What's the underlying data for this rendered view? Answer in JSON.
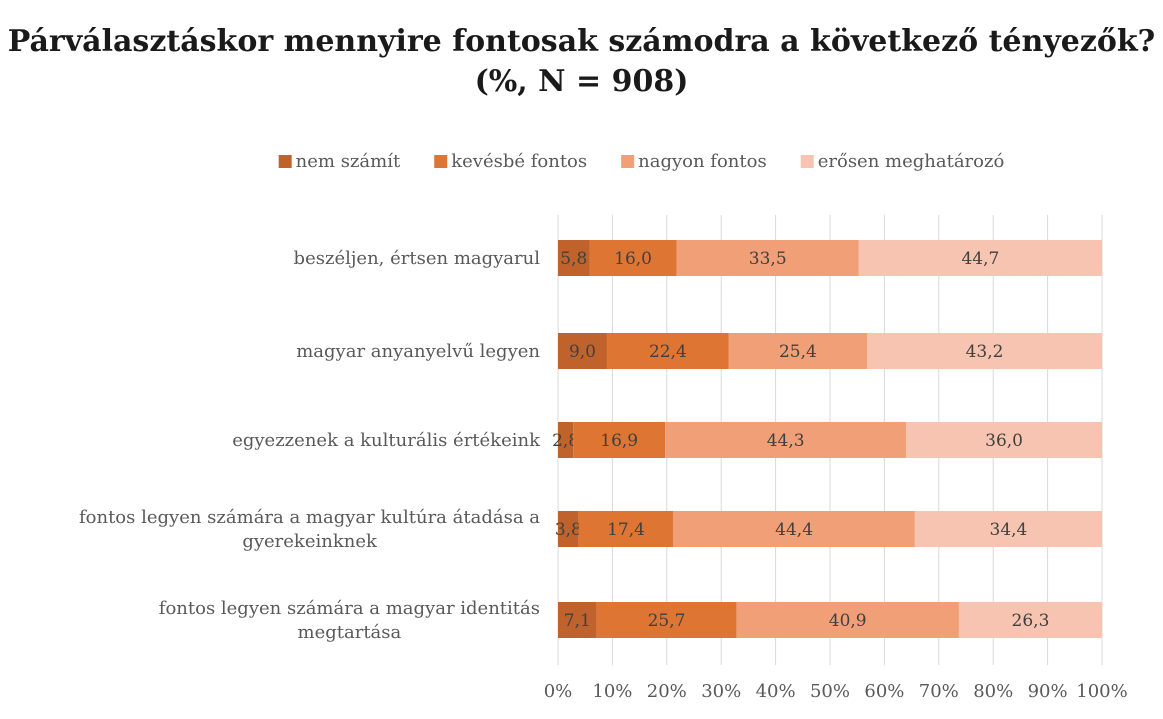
{
  "title_line1": "Párválasztáskor mennyire fontosak számodra a következő tényezők?",
  "title_line2": "(%, N = 908)",
  "chart_data": {
    "type": "bar",
    "orientation": "horizontal",
    "stacked": true,
    "percent_stacked": true,
    "categories": [
      [
        "beszéljen, értsen magyarul"
      ],
      [
        "magyar anyanyelvű legyen"
      ],
      [
        "egyezzenek a kulturális értékeink"
      ],
      [
        "fontos legyen számára a magyar kultúra átadása a",
        "gyerekeinknek"
      ],
      [
        "fontos legyen számára a magyar identitás",
        "megtartása"
      ]
    ],
    "series": [
      {
        "name": "nem számít",
        "color": "#c0622b",
        "values": [
          5.8,
          9.0,
          2.8,
          3.8,
          7.1
        ],
        "labels": [
          "5,8",
          "9,0",
          "2,8",
          "3,8",
          "7,1"
        ]
      },
      {
        "name": "kevésbé fontos",
        "color": "#de7532",
        "values": [
          16.0,
          22.4,
          16.9,
          17.4,
          25.7
        ],
        "labels": [
          "16,0",
          "22,4",
          "16,9",
          "17,4",
          "25,7"
        ]
      },
      {
        "name": "nagyon fontos",
        "color": "#f09f76",
        "values": [
          33.5,
          25.4,
          44.3,
          44.4,
          40.9
        ],
        "labels": [
          "33,5",
          "25,4",
          "44,3",
          "44,4",
          "40,9"
        ]
      },
      {
        "name": "erősen meghatározó",
        "color": "#f6c4b0",
        "values": [
          44.7,
          43.2,
          36.0,
          34.4,
          26.3
        ],
        "labels": [
          "44,7",
          "43,2",
          "36,0",
          "34,4",
          "26,3"
        ]
      }
    ],
    "xlim": [
      0,
      100
    ],
    "x_ticks": [
      "0%",
      "10%",
      "20%",
      "30%",
      "40%",
      "50%",
      "60%",
      "70%",
      "80%",
      "90%",
      "100%"
    ],
    "grid": true,
    "legend_position": "top"
  }
}
